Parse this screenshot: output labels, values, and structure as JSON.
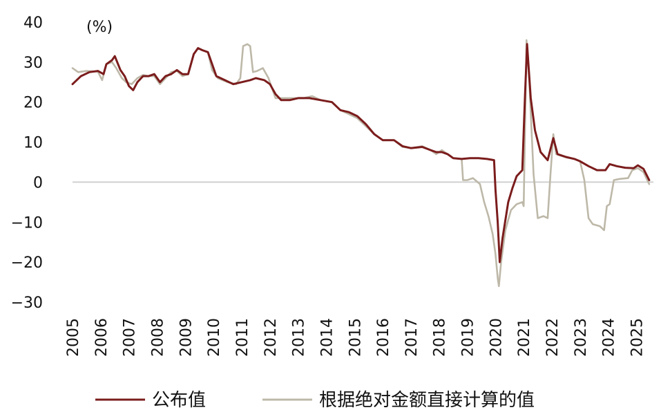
{
  "chart_data": {
    "type": "line",
    "unit_label": "(%)",
    "ylim": [
      -30,
      40
    ],
    "yticks": [
      "40",
      "30",
      "20",
      "10",
      "0",
      "−10",
      "−20",
      "−30"
    ],
    "yticks_values": [
      40,
      30,
      20,
      10,
      0,
      -10,
      -20,
      -30
    ],
    "xlim": [
      2005,
      2025.6
    ],
    "xticks": [
      "2005",
      "2006",
      "2007",
      "2008",
      "2009",
      "2010",
      "2011",
      "2012",
      "2013",
      "2014",
      "2015",
      "2016",
      "2017",
      "2018",
      "2019",
      "2020",
      "2021",
      "2022",
      "2023",
      "2024",
      "2025"
    ],
    "xticks_values": [
      2005,
      2006,
      2007,
      2008,
      2009,
      2010,
      2011,
      2012,
      2013,
      2014,
      2015,
      2016,
      2017,
      2018,
      2019,
      2020,
      2021,
      2022,
      2023,
      2024,
      2025
    ],
    "zero_line": true,
    "grid": false,
    "legend_position": "bottom",
    "series": [
      {
        "name": "公布值",
        "color": "#7b1c1c",
        "points": [
          [
            2005.0,
            24.5
          ],
          [
            2005.3,
            26.5
          ],
          [
            2005.6,
            27.5
          ],
          [
            2005.9,
            27.8
          ],
          [
            2006.1,
            27.0
          ],
          [
            2006.2,
            29.5
          ],
          [
            2006.4,
            30.5
          ],
          [
            2006.5,
            31.5
          ],
          [
            2006.7,
            28.0
          ],
          [
            2006.85,
            26.5
          ],
          [
            2007.0,
            24.0
          ],
          [
            2007.15,
            23.0
          ],
          [
            2007.3,
            25.0
          ],
          [
            2007.5,
            26.5
          ],
          [
            2007.7,
            26.5
          ],
          [
            2007.9,
            27.0
          ],
          [
            2008.1,
            25.0
          ],
          [
            2008.3,
            26.5
          ],
          [
            2008.5,
            27.0
          ],
          [
            2008.7,
            28.0
          ],
          [
            2008.9,
            27.0
          ],
          [
            2009.1,
            27.0
          ],
          [
            2009.3,
            32.0
          ],
          [
            2009.45,
            33.5
          ],
          [
            2009.6,
            33.0
          ],
          [
            2009.8,
            32.5
          ],
          [
            2009.95,
            29.5
          ],
          [
            2010.1,
            26.5
          ],
          [
            2010.4,
            25.5
          ],
          [
            2010.7,
            24.5
          ],
          [
            2011.0,
            25.0
          ],
          [
            2011.3,
            25.5
          ],
          [
            2011.5,
            26.0
          ],
          [
            2011.8,
            25.5
          ],
          [
            2012.0,
            24.5
          ],
          [
            2012.2,
            22.0
          ],
          [
            2012.4,
            20.5
          ],
          [
            2012.7,
            20.5
          ],
          [
            2013.0,
            21.0
          ],
          [
            2013.4,
            21.0
          ],
          [
            2013.8,
            20.5
          ],
          [
            2014.2,
            20.0
          ],
          [
            2014.5,
            18.0
          ],
          [
            2014.8,
            17.5
          ],
          [
            2015.1,
            16.5
          ],
          [
            2015.4,
            14.5
          ],
          [
            2015.7,
            12.0
          ],
          [
            2016.0,
            10.5
          ],
          [
            2016.4,
            10.5
          ],
          [
            2016.7,
            9.0
          ],
          [
            2017.0,
            8.5
          ],
          [
            2017.4,
            8.8
          ],
          [
            2017.7,
            8.0
          ],
          [
            2017.9,
            7.5
          ],
          [
            2018.1,
            7.5
          ],
          [
            2018.3,
            7.0
          ],
          [
            2018.5,
            6.0
          ],
          [
            2018.8,
            5.8
          ],
          [
            2019.1,
            6.0
          ],
          [
            2019.4,
            6.0
          ],
          [
            2019.7,
            5.8
          ],
          [
            2019.95,
            5.5
          ],
          [
            2020.0,
            -2.0
          ],
          [
            2020.08,
            -10.0
          ],
          [
            2020.15,
            -20.0
          ],
          [
            2020.25,
            -14.0
          ],
          [
            2020.45,
            -5.0
          ],
          [
            2020.6,
            -1.5
          ],
          [
            2020.75,
            1.5
          ],
          [
            2020.95,
            3.0
          ],
          [
            2021.05,
            22.0
          ],
          [
            2021.12,
            34.5
          ],
          [
            2021.25,
            21.0
          ],
          [
            2021.4,
            13.0
          ],
          [
            2021.6,
            7.5
          ],
          [
            2021.85,
            5.5
          ],
          [
            2022.05,
            11.0
          ],
          [
            2022.2,
            7.0
          ],
          [
            2022.5,
            6.3
          ],
          [
            2022.8,
            5.8
          ],
          [
            2023.0,
            5.2
          ],
          [
            2023.3,
            4.0
          ],
          [
            2023.6,
            3.0
          ],
          [
            2023.9,
            3.0
          ],
          [
            2024.05,
            4.5
          ],
          [
            2024.3,
            4.0
          ],
          [
            2024.6,
            3.6
          ],
          [
            2024.9,
            3.5
          ],
          [
            2025.05,
            4.2
          ],
          [
            2025.25,
            3.3
          ],
          [
            2025.45,
            0.5
          ]
        ]
      },
      {
        "name": "根据绝对金额直接计算的值",
        "color": "#bdb8a8",
        "points": [
          [
            2005.0,
            28.5
          ],
          [
            2005.2,
            27.5
          ],
          [
            2005.5,
            27.8
          ],
          [
            2005.9,
            27.6
          ],
          [
            2006.05,
            25.5
          ],
          [
            2006.2,
            29.5
          ],
          [
            2006.4,
            30.0
          ],
          [
            2006.55,
            28.5
          ],
          [
            2006.75,
            26.0
          ],
          [
            2006.9,
            25.0
          ],
          [
            2007.1,
            24.5
          ],
          [
            2007.3,
            26.0
          ],
          [
            2007.5,
            26.8
          ],
          [
            2007.7,
            26.5
          ],
          [
            2007.9,
            26.5
          ],
          [
            2008.1,
            24.5
          ],
          [
            2008.3,
            26.0
          ],
          [
            2008.5,
            27.5
          ],
          [
            2008.7,
            27.8
          ],
          [
            2008.9,
            26.5
          ],
          [
            2009.1,
            27.0
          ],
          [
            2009.3,
            32.0
          ],
          [
            2009.45,
            33.5
          ],
          [
            2009.6,
            33.0
          ],
          [
            2009.8,
            32.5
          ],
          [
            2009.95,
            28.0
          ],
          [
            2010.15,
            26.0
          ],
          [
            2010.5,
            25.0
          ],
          [
            2010.8,
            24.5
          ],
          [
            2010.95,
            26.0
          ],
          [
            2011.05,
            34.0
          ],
          [
            2011.2,
            34.5
          ],
          [
            2011.3,
            34.0
          ],
          [
            2011.4,
            27.5
          ],
          [
            2011.55,
            27.8
          ],
          [
            2011.75,
            28.5
          ],
          [
            2011.95,
            26.0
          ],
          [
            2012.2,
            21.0
          ],
          [
            2012.5,
            21.0
          ],
          [
            2012.9,
            21.0
          ],
          [
            2013.2,
            21.0
          ],
          [
            2013.5,
            21.5
          ],
          [
            2013.8,
            20.5
          ],
          [
            2014.2,
            20.0
          ],
          [
            2014.5,
            18.0
          ],
          [
            2014.8,
            17.0
          ],
          [
            2015.1,
            16.0
          ],
          [
            2015.4,
            14.0
          ],
          [
            2015.7,
            12.0
          ],
          [
            2016.0,
            10.5
          ],
          [
            2016.4,
            10.5
          ],
          [
            2016.7,
            8.8
          ],
          [
            2017.0,
            8.5
          ],
          [
            2017.4,
            9.0
          ],
          [
            2017.7,
            8.0
          ],
          [
            2017.9,
            7.0
          ],
          [
            2018.1,
            8.0
          ],
          [
            2018.3,
            7.0
          ],
          [
            2018.5,
            6.0
          ],
          [
            2018.8,
            5.8
          ],
          [
            2018.85,
            0.5
          ],
          [
            2019.0,
            0.5
          ],
          [
            2019.2,
            1.0
          ],
          [
            2019.45,
            -0.5
          ],
          [
            2019.6,
            -5.0
          ],
          [
            2019.75,
            -8.5
          ],
          [
            2019.9,
            -13.0
          ],
          [
            2020.0,
            -18.0
          ],
          [
            2020.08,
            -24.0
          ],
          [
            2020.12,
            -26.0
          ],
          [
            2020.2,
            -20.0
          ],
          [
            2020.35,
            -12.0
          ],
          [
            2020.55,
            -7.0
          ],
          [
            2020.75,
            -5.5
          ],
          [
            2020.95,
            -5.0
          ],
          [
            2021.0,
            -6.0
          ],
          [
            2021.1,
            35.5
          ],
          [
            2021.2,
            25.0
          ],
          [
            2021.35,
            2.0
          ],
          [
            2021.5,
            -9.0
          ],
          [
            2021.7,
            -8.5
          ],
          [
            2021.85,
            -9.0
          ],
          [
            2021.95,
            2.0
          ],
          [
            2022.05,
            12.0
          ],
          [
            2022.15,
            7.0
          ],
          [
            2022.5,
            6.2
          ],
          [
            2022.8,
            5.8
          ],
          [
            2023.0,
            5.2
          ],
          [
            2023.15,
            0.5
          ],
          [
            2023.3,
            -9.0
          ],
          [
            2023.45,
            -10.5
          ],
          [
            2023.7,
            -11.0
          ],
          [
            2023.85,
            -12.0
          ],
          [
            2023.95,
            -6.0
          ],
          [
            2024.05,
            -5.5
          ],
          [
            2024.2,
            0.5
          ],
          [
            2024.4,
            0.8
          ],
          [
            2024.7,
            1.0
          ],
          [
            2024.85,
            3.0
          ],
          [
            2025.05,
            3.5
          ],
          [
            2025.25,
            2.5
          ],
          [
            2025.45,
            -0.5
          ]
        ]
      }
    ]
  }
}
